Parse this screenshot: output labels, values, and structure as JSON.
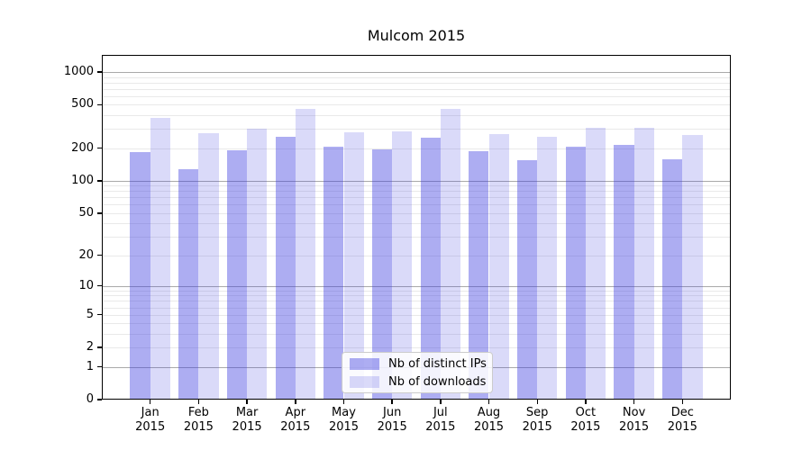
{
  "title": "Mulcom 2015",
  "chart_data": {
    "type": "bar",
    "title": "Mulcom 2015",
    "categories": [
      "Jan",
      "Feb",
      "Mar",
      "Apr",
      "May",
      "Jun",
      "Jul",
      "Aug",
      "Sep",
      "Oct",
      "Nov",
      "Dec"
    ],
    "year_label": "2015",
    "series": [
      {
        "name": "Nb of distinct IPs",
        "color": "rgba(60,60,225,0.42)",
        "values": [
          183,
          129,
          192,
          253,
          205,
          195,
          248,
          187,
          154,
          205,
          213,
          159
        ]
      },
      {
        "name": "Nb of downloads",
        "color": "rgba(60,60,225,0.19)",
        "values": [
          380,
          273,
          304,
          456,
          280,
          286,
          459,
          268,
          256,
          308,
          306,
          263
        ]
      }
    ],
    "y_ticks": [
      0,
      1,
      2,
      5,
      10,
      20,
      50,
      100,
      200,
      500,
      1000
    ],
    "y_major_gridlines": [
      1,
      10,
      100,
      1000
    ],
    "y_scale": "log1p",
    "ylim": [
      0,
      1433
    ],
    "xlabel": "",
    "ylabel": "",
    "grid": true,
    "legend_position": "lower center"
  },
  "colors": {
    "grid_major": "#a9a9a9",
    "grid_minor": "#e9e9e9",
    "axis": "#000000",
    "background": "#ffffff"
  }
}
